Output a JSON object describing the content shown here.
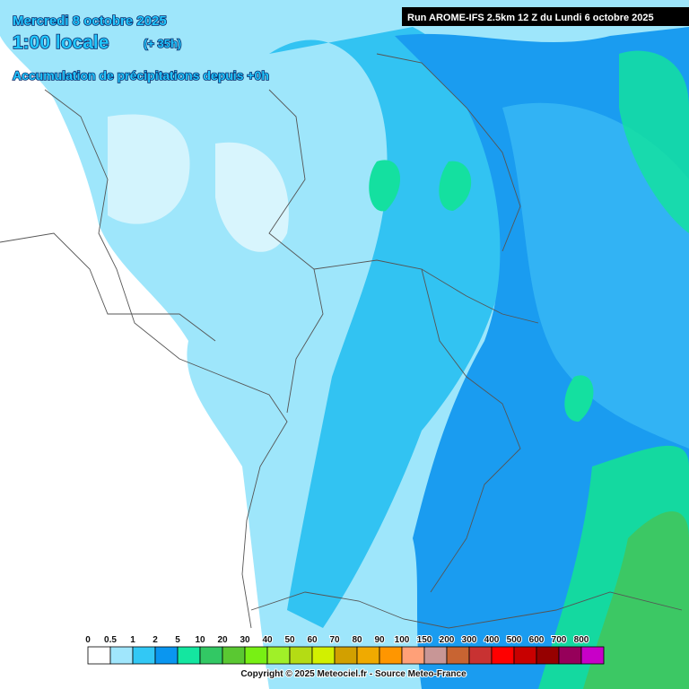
{
  "header": {
    "date": "Mercredi 8 octobre 2025",
    "time": "1:00 locale",
    "lead": "(+ 35h)",
    "product": "Accumulation de précipitations depuis +0h",
    "run": "Run AROME-IFS 2.5km 12 Z du Lundi 6 octobre 2025"
  },
  "legend": {
    "items": [
      {
        "label": "0",
        "color": "#ffffff"
      },
      {
        "label": "0.5",
        "color": "#a0e6fc"
      },
      {
        "label": "1",
        "color": "#32c8f5"
      },
      {
        "label": "2",
        "color": "#0a96f0"
      },
      {
        "label": "5",
        "color": "#14e6a0"
      },
      {
        "label": "10",
        "color": "#32c864"
      },
      {
        "label": "20",
        "color": "#5ac832"
      },
      {
        "label": "30",
        "color": "#78f014"
      },
      {
        "label": "40",
        "color": "#a0f028"
      },
      {
        "label": "50",
        "color": "#b4dc14"
      },
      {
        "label": "60",
        "color": "#d2f000"
      },
      {
        "label": "70",
        "color": "#d2a000"
      },
      {
        "label": "80",
        "color": "#f0aa00"
      },
      {
        "label": "90",
        "color": "#ff9600"
      },
      {
        "label": "100",
        "color": "#ffa078"
      },
      {
        "label": "150",
        "color": "#c89696"
      },
      {
        "label": "200",
        "color": "#c86432"
      },
      {
        "label": "300",
        "color": "#c83232"
      },
      {
        "label": "400",
        "color": "#ff0000"
      },
      {
        "label": "500",
        "color": "#c80000"
      },
      {
        "label": "600",
        "color": "#960000"
      },
      {
        "label": "700",
        "color": "#96005a"
      },
      {
        "label": "800",
        "color": "#c800c8"
      }
    ]
  },
  "footer": {
    "copyright": "Copyright © 2025 Meteociel.fr - Source Meteo-France"
  }
}
